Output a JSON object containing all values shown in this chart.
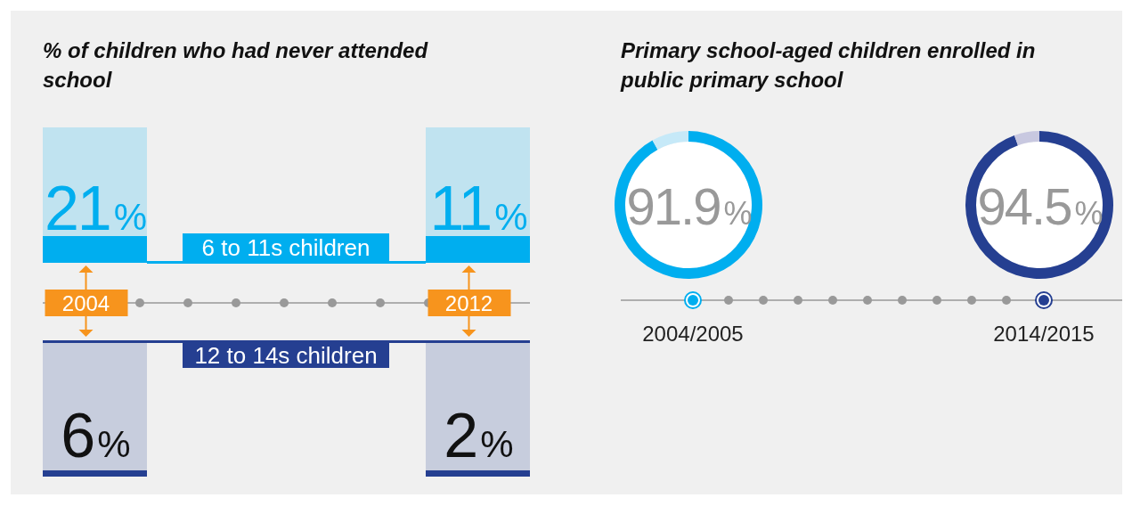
{
  "chart_data": [
    {
      "type": "other",
      "title": "% of children who had never attended school",
      "categories": [
        "2004",
        "2012"
      ],
      "series": [
        {
          "name": "6 to 11s children",
          "color": "#00aeef",
          "values": [
            21,
            11
          ],
          "value_labels": [
            "21%",
            "11%"
          ]
        },
        {
          "name": "12 to 14s children",
          "color": "#253f91",
          "values": [
            6,
            2
          ],
          "value_labels": [
            "6%",
            "2%"
          ]
        }
      ]
    },
    {
      "type": "donut",
      "title": "Primary school-aged children enrolled in public primary school",
      "categories": [
        "2004/2005",
        null
      ],
      "values": [
        91.9,
        8.1
      ],
      "colors": [
        "#00aeef",
        "#c6e9f8"
      ],
      "value_labels": [
        "91.9%",
        null
      ]
    },
    {
      "type": "donut",
      "categories": [
        "2014/2015",
        null
      ],
      "values": [
        94.5,
        5.5
      ],
      "colors": [
        "#253f91",
        "#c8c8e0"
      ],
      "value_labels": [
        "94.5%",
        null
      ]
    }
  ]
}
